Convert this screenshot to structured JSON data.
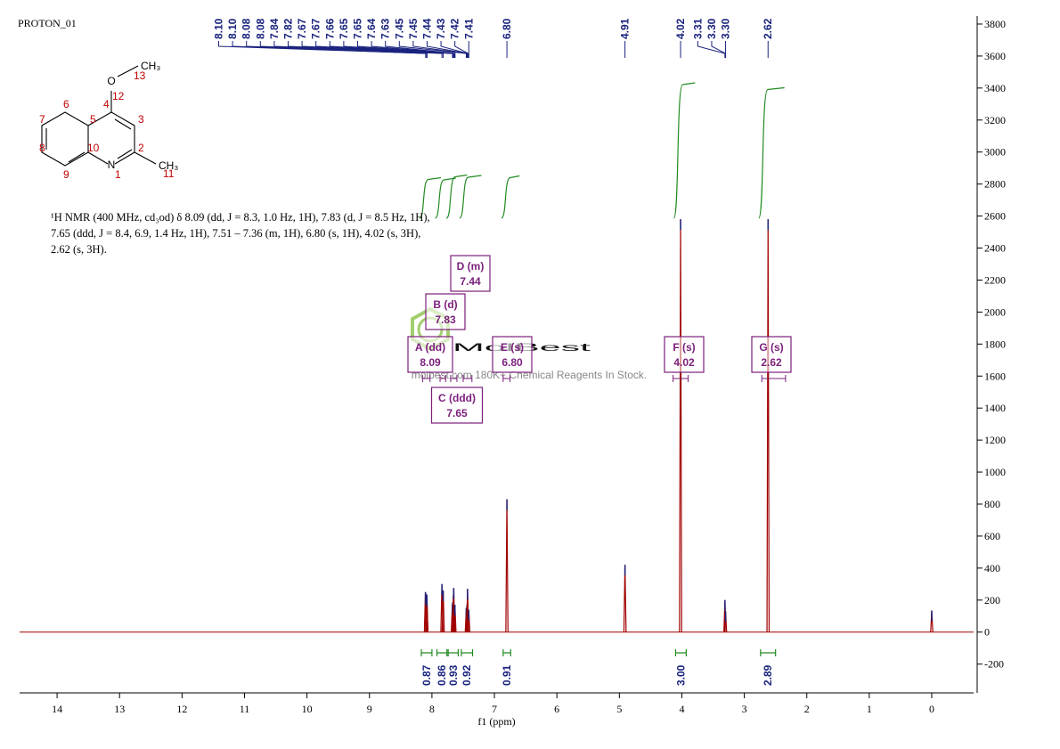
{
  "title": "PROTON_01",
  "structure": {
    "atoms": [
      "O",
      "CH₃",
      "N",
      "CH₃"
    ],
    "numbers": [
      "13",
      "12",
      "4",
      "3",
      "2",
      "1",
      "10",
      "5",
      "6",
      "7",
      "8",
      "9",
      "11"
    ]
  },
  "description": "¹H NMR (400 MHz, cd₃od) δ 8.09 (dd, J = 8.3, 1.0 Hz, 1H), 7.83 (d, J = 8.5 Hz, 1H), 7.65 (ddd, J = 8.4, 6.9, 1.4 Hz, 1H), 7.51 – 7.36 (m, 1H), 6.80 (s, 1H), 4.02 (s, 3H), 2.62 (s, 3H).",
  "watermark": {
    "logo": "MolBest",
    "text": "molbest.com 180K+ Chemical Reagents In Stock."
  },
  "chart_data": {
    "type": "nmr",
    "x_label": "f1 (ppm)",
    "xlim": [
      14.6,
      -0.67
    ],
    "xticks": [
      0,
      1,
      2,
      3,
      4,
      5,
      6,
      7,
      8,
      9,
      10,
      11,
      12,
      13,
      14
    ],
    "ylim": [
      -380,
      3850
    ],
    "yticks": [
      -200,
      0,
      200,
      400,
      600,
      800,
      1000,
      1200,
      1400,
      1600,
      1800,
      2000,
      2200,
      2400,
      2600,
      2800,
      3000,
      3200,
      3400,
      3600,
      3800
    ],
    "color": "#a00000",
    "peaks": {
      "x": [
        8.104,
        8.101,
        8.083,
        8.08,
        7.84,
        7.82,
        7.673,
        7.669,
        7.656,
        7.651,
        7.636,
        7.632,
        7.45,
        7.44,
        7.43,
        7.41,
        6.8,
        4.91,
        4.02,
        3.31,
        3.3,
        2.62,
        0
      ],
      "values": [
        250,
        240,
        235,
        225,
        300,
        260,
        170,
        185,
        230,
        275,
        160,
        170,
        150,
        170,
        270,
        140,
        830,
        420,
        2580,
        200,
        130,
        2580,
        135
      ]
    },
    "peak_labels": [
      {
        "value": 8.1,
        "label": "8.10"
      },
      {
        "value": 8.1,
        "label": "8.10"
      },
      8.08,
      8.08,
      7.84,
      7.82,
      7.67,
      7.67,
      7.66,
      7.65,
      7.65,
      7.64,
      7.63,
      7.45,
      7.45,
      7.44,
      7.43,
      7.42,
      7.41,
      {
        "value": 6.8,
        "label": "6.80"
      },
      4.91,
      4.02,
      3.31,
      {
        "value": 3.3,
        "label": "3.30"
      },
      {
        "value": 3.3,
        "label": "3.30"
      },
      2.62
    ],
    "multiplets": [
      {
        "name": "A (dd)",
        "shift": 8.09,
        "range": [
          8.15,
          8.03
        ]
      },
      {
        "name": "B (d)",
        "shift": 7.83,
        "range": [
          7.87,
          7.78
        ]
      },
      {
        "name": "C (ddd)",
        "shift": 7.65,
        "range": [
          7.7,
          7.6
        ]
      },
      {
        "name": "D (m)",
        "shift": 7.44,
        "range": [
          7.5,
          7.36
        ]
      },
      {
        "name": "E (s)",
        "shift": {
          "value": 6.8,
          "label": "6.80"
        },
        "range": [
          6.86,
          6.75
        ]
      },
      {
        "name": "F (s)",
        "shift": 4.02,
        "range": [
          4.14,
          3.9
        ]
      },
      {
        "name": "G (s)",
        "shift": 2.62,
        "range": [
          2.72,
          2.34
        ]
      }
    ],
    "integrals": [
      {
        "value": 0.87,
        "range": [
          8.17,
          8.0
        ]
      },
      {
        "value": 0.86,
        "range": [
          7.92,
          7.76
        ]
      },
      {
        "value": 0.93,
        "range": [
          7.74,
          7.58
        ]
      },
      {
        "value": 0.92,
        "range": [
          7.53,
          7.35
        ]
      },
      {
        "value": 0.91,
        "range": [
          6.86,
          6.74
        ]
      },
      {
        "value": {
          "value": 3,
          "label": "3.00"
        },
        "range": [
          4.1,
          3.93
        ]
      },
      {
        "value": 2.89,
        "range": [
          2.74,
          2.5
        ]
      }
    ]
  }
}
